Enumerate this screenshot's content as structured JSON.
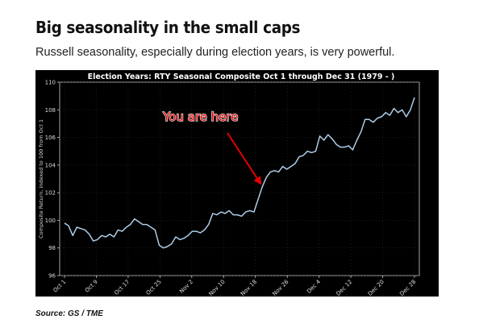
{
  "header": {
    "title": "Big seasonality in the small caps",
    "subtitle": "Russell seasonality, especially during election years, is very powerful."
  },
  "source": "Source: GS / TME",
  "chart_data": {
    "type": "line",
    "title": "Election Years: RTY Seasonal Composite Oct 1 through Dec 31 (1979 - )",
    "xlabel": "",
    "ylabel": "Composite Return, indexed to 100 from Oct 1",
    "ylim": [
      96,
      110
    ],
    "y_ticks": [
      96,
      98,
      100,
      102,
      104,
      106,
      108,
      110
    ],
    "x_ticks": [
      "Oct 1",
      "Oct 9",
      "Oct 17",
      "Oct 25",
      "Nov 2",
      "Nov 10",
      "Nov 18",
      "Nov 26",
      "Dec 4",
      "Dec 12",
      "Dec 20",
      "Dec 28"
    ],
    "grid": true,
    "line_color": "#aecde8",
    "series": [
      {
        "name": "",
        "values": [
          99.8,
          99.6,
          98.9,
          99.5,
          99.4,
          99.3,
          99.0,
          98.5,
          98.6,
          98.9,
          98.8,
          99.0,
          98.8,
          99.3,
          99.2,
          99.5,
          99.7,
          100.1,
          99.9,
          99.7,
          99.7,
          99.5,
          99.3,
          98.2,
          98.0,
          98.1,
          98.3,
          98.8,
          98.6,
          98.7,
          98.9,
          99.2,
          99.2,
          99.1,
          99.3,
          99.7,
          100.5,
          100.4,
          100.6,
          100.5,
          100.7,
          100.4,
          100.4,
          100.3,
          100.6,
          100.7,
          100.6,
          101.5,
          102.4,
          103.1,
          103.5,
          103.6,
          103.5,
          103.9,
          103.7,
          103.9,
          104.1,
          104.6,
          104.7,
          105.0,
          104.9,
          105.0,
          106.1,
          105.8,
          106.2,
          105.9,
          105.5,
          105.3,
          105.3,
          105.4,
          105.1,
          105.8,
          106.4,
          107.3,
          107.3,
          107.1,
          107.4,
          107.5,
          107.8,
          107.6,
          108.1,
          107.8,
          108.0,
          107.5,
          108.0,
          108.9
        ]
      }
    ],
    "annotations": [
      {
        "text": "You are here",
        "points_to": {
          "x_index": 48,
          "y": 102.4
        }
      }
    ],
    "colors": {
      "background": "#000000",
      "annotation_text": "#e60000",
      "annotation_outline": "#ffffff",
      "arrow": "#e60000"
    }
  }
}
